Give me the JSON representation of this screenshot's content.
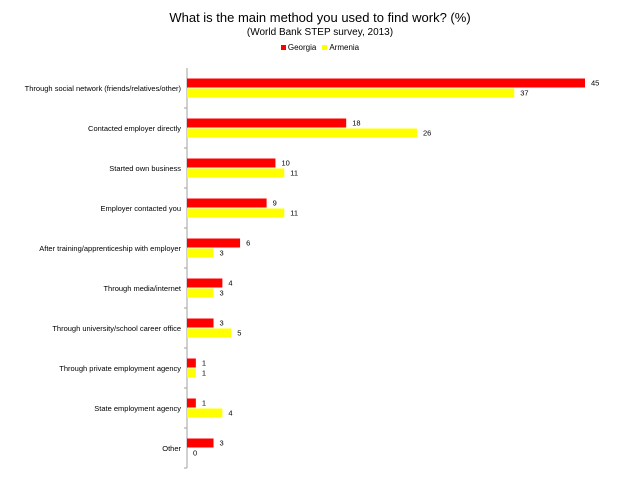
{
  "chart_data": {
    "type": "bar",
    "orientation": "horizontal",
    "title": "What is the main method you used to find work? (%)",
    "subtitle": "(World Bank STEP survey, 2013)",
    "xlabel": "",
    "ylabel": "",
    "xlim": [
      0,
      45
    ],
    "grid": false,
    "legend_position": "top-center",
    "categories": [
      "Through social network (friends/relatives/other)",
      "Contacted employer directly",
      "Started own business",
      "Employer contacted you",
      "After training/apprenticeship with employer",
      "Through media/internet",
      "Through university/school career office",
      "Through private employment agency",
      "State employment agency",
      "Other"
    ],
    "series": [
      {
        "name": "Georgia",
        "color": "#ff0000",
        "values": [
          45,
          18,
          10,
          9,
          6,
          4,
          3,
          1,
          1,
          3
        ]
      },
      {
        "name": "Armenia",
        "color": "#ffff00",
        "values": [
          37,
          26,
          11,
          11,
          3,
          3,
          5,
          1,
          4,
          0
        ]
      }
    ]
  }
}
